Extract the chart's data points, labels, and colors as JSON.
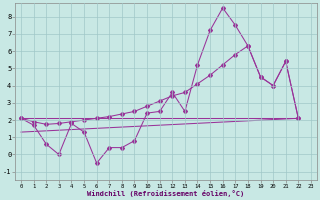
{
  "background_color": "#c8e8e4",
  "grid_color": "#a0c8c8",
  "line_color": "#993399",
  "xlabel": "Windchill (Refroidissement éolien,°C)",
  "xlim": [
    -0.5,
    23.5
  ],
  "ylim": [
    -1.5,
    8.8
  ],
  "xticks": [
    0,
    1,
    2,
    3,
    4,
    5,
    6,
    7,
    8,
    9,
    10,
    11,
    12,
    13,
    14,
    15,
    16,
    17,
    18,
    19,
    20,
    21,
    22,
    23
  ],
  "yticks": [
    -1,
    0,
    1,
    2,
    3,
    4,
    5,
    6,
    7,
    8
  ],
  "line1_x": [
    0,
    1,
    2,
    3,
    4,
    5,
    6,
    7,
    8,
    9,
    10,
    11,
    12,
    13,
    14,
    15,
    16,
    17,
    18,
    19,
    20,
    21,
    22
  ],
  "line1_y": [
    2.1,
    1.7,
    0.6,
    0.0,
    1.8,
    1.3,
    -0.5,
    0.4,
    0.4,
    0.8,
    2.4,
    2.5,
    3.6,
    2.5,
    5.2,
    7.2,
    8.5,
    7.5,
    6.3,
    4.5,
    4.0,
    5.4,
    2.1
  ],
  "line2_x": [
    0,
    1,
    2,
    3,
    4,
    5,
    6,
    7,
    8,
    9,
    10,
    11,
    12,
    13,
    14,
    15,
    16,
    17,
    18,
    19,
    20,
    21,
    22
  ],
  "line2_y": [
    2.1,
    1.9,
    1.75,
    1.8,
    1.9,
    2.0,
    2.1,
    2.2,
    2.35,
    2.5,
    2.8,
    3.1,
    3.4,
    3.6,
    4.1,
    4.6,
    5.2,
    5.8,
    6.3,
    4.5,
    4.0,
    5.4,
    2.1
  ],
  "line3_x": [
    0,
    22
  ],
  "line3_y": [
    1.3,
    2.1
  ],
  "line4_x": [
    0,
    22
  ],
  "line4_y": [
    2.1,
    2.1
  ]
}
